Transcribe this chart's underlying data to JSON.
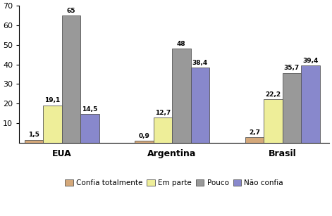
{
  "categories": [
    "EUA",
    "Argentina",
    "Brasil"
  ],
  "series": {
    "Confia totalmente": [
      1.5,
      0.9,
      2.7
    ],
    "Em parte": [
      19.1,
      12.7,
      22.2
    ],
    "Pouco": [
      65,
      48,
      35.7
    ],
    "Não confia": [
      14.5,
      38.4,
      39.4
    ]
  },
  "colors": {
    "Confia totalmente": "#D4A87A",
    "Em parte": "#EEEE99",
    "Pouco": "#999999",
    "Não confia": "#8888CC"
  },
  "bar_labels": {
    "Confia totalmente": [
      "1,5",
      "0,9",
      "2,7"
    ],
    "Em parte": [
      "19,1",
      "12,7",
      "22,2"
    ],
    "Pouco": [
      "65",
      "48",
      "35,7"
    ],
    "Não confia": [
      "14,5",
      "38,4",
      "39,4"
    ]
  },
  "ylim": [
    0,
    70
  ],
  "yticks": [
    0,
    10,
    20,
    30,
    40,
    50,
    60,
    70
  ],
  "legend_labels": [
    "Confia totalmente",
    "Em parte",
    "Pouco",
    "Não confia"
  ],
  "background_color": "#ffffff",
  "bar_width": 0.22,
  "group_positions": [
    0.45,
    1.75,
    3.05
  ]
}
